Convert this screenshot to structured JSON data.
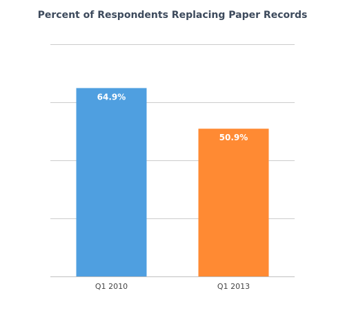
{
  "chart_data": {
    "type": "bar",
    "title": "Percent of Respondents Replacing Paper Records",
    "categories": [
      "Q1 2010",
      "Q1 2013"
    ],
    "values": [
      64.9,
      50.9
    ],
    "data_labels": [
      "64.9%",
      "50.9%"
    ],
    "colors": [
      "#4f9fe0",
      "#ff8a33"
    ],
    "ylim": [
      0,
      80
    ],
    "yticks": [
      0,
      20,
      40,
      60,
      80
    ],
    "grid": true,
    "legend": "none",
    "xlabel": "",
    "ylabel": ""
  }
}
